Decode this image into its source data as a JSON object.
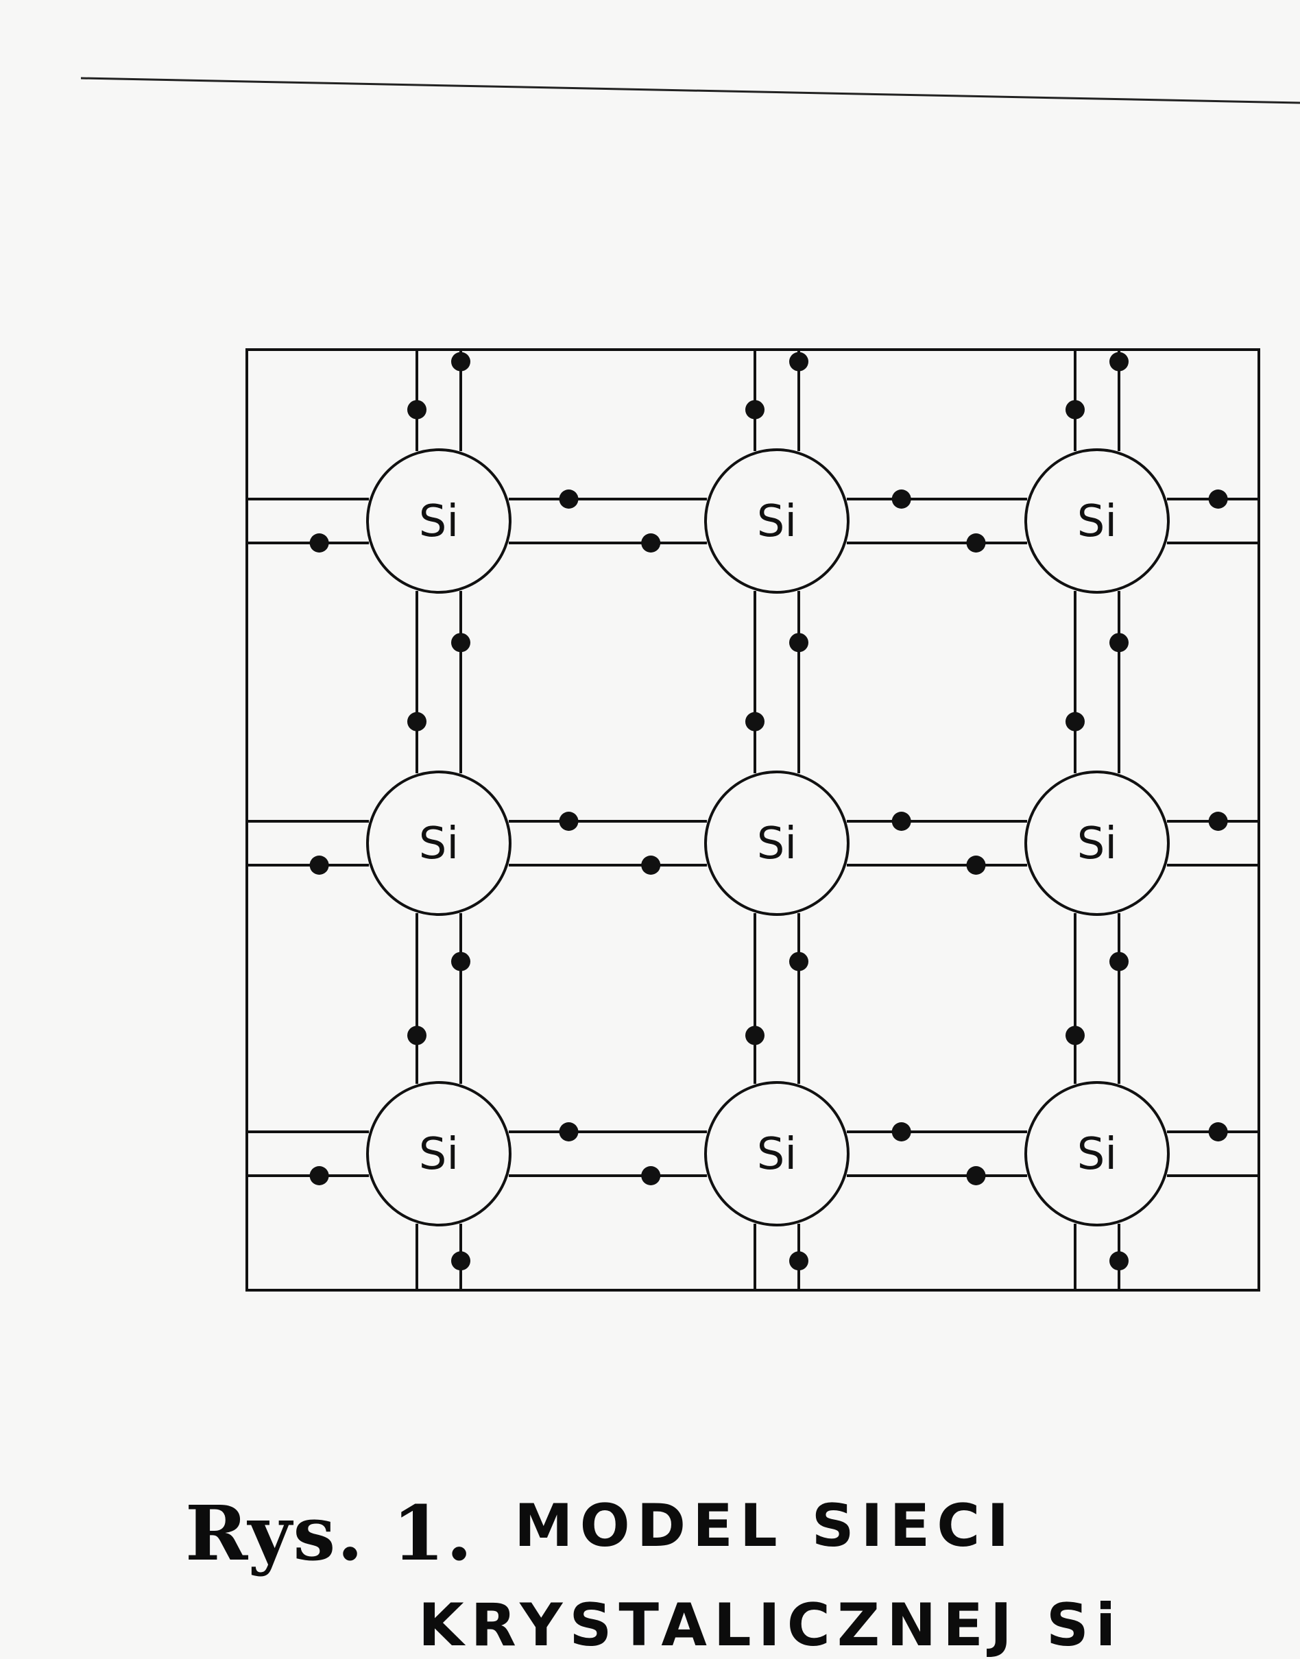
{
  "diagram": {
    "atom_label": "Si",
    "grid": {
      "rows": 3,
      "cols": 3
    },
    "atoms": [
      {
        "row": 0,
        "col": 0,
        "label": "Si"
      },
      {
        "row": 0,
        "col": 1,
        "label": "Si"
      },
      {
        "row": 0,
        "col": 2,
        "label": "Si"
      },
      {
        "row": 1,
        "col": 0,
        "label": "Si"
      },
      {
        "row": 1,
        "col": 1,
        "label": "Si"
      },
      {
        "row": 1,
        "col": 2,
        "label": "Si"
      },
      {
        "row": 2,
        "col": 0,
        "label": "Si"
      },
      {
        "row": 2,
        "col": 1,
        "label": "Si"
      },
      {
        "row": 2,
        "col": 2,
        "label": "Si"
      }
    ],
    "electrons_per_bond": 2
  },
  "caption": {
    "line1_prefix": "Rys. 1.",
    "line1": "MODEL SIECI",
    "line2": "KRYSTALICZNEJ Si"
  },
  "colors": {
    "ink": "#111111",
    "paper": "#f7f7f6"
  }
}
